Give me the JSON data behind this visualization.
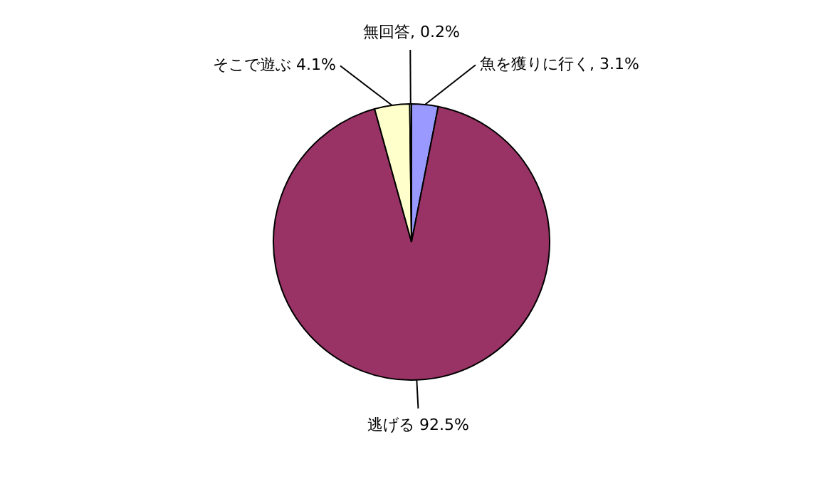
{
  "chart_data": {
    "type": "pie",
    "categories": [
      "魚を獲りに行く",
      "逃げる",
      "そこで遊ぶ",
      "無回答"
    ],
    "values": [
      3.1,
      92.5,
      4.1,
      0.2
    ],
    "colors": [
      "#9999ff",
      "#993366",
      "#ffffcc",
      "#ccffff"
    ],
    "value_labels": [
      "3.1%",
      "92.5%",
      "4.1%",
      "0.2%"
    ]
  }
}
